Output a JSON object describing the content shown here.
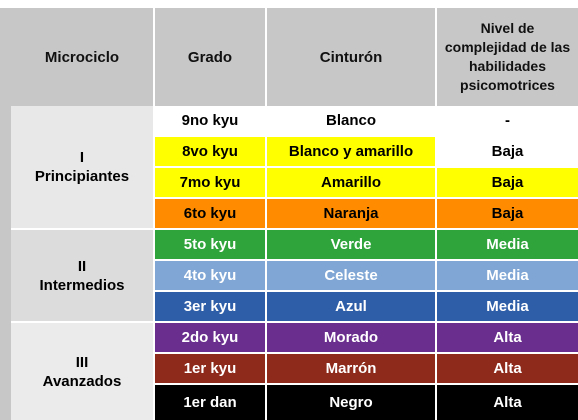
{
  "header": {
    "microciclo": "Microciclo",
    "grado": "Grado",
    "cinturon": "Cinturón",
    "nivel": "Nivel de complejidad de las habilidades psicomotrices"
  },
  "microciclos": [
    {
      "numeral": "I",
      "name": "Principiantes",
      "bg": "#e8e8e8"
    },
    {
      "numeral": "II",
      "name": "Intermedios",
      "bg": "#dcdcdc"
    },
    {
      "numeral": "III",
      "name": "Avanzados",
      "bg": "#ebebeb"
    }
  ],
  "rows": [
    {
      "grado": "9no kyu",
      "cinturon": "Blanco",
      "nivel": "-",
      "bg": "#ffffff",
      "fg": "#000000"
    },
    {
      "grado": "8vo kyu",
      "cinturon": "Blanco y amarillo",
      "nivel": "Baja",
      "bg": "#ffff00",
      "fg": "#000000",
      "nivel_bg": "#ffffff"
    },
    {
      "grado": "7mo kyu",
      "cinturon": "Amarillo",
      "nivel": "Baja",
      "bg": "#ffff00",
      "fg": "#000000"
    },
    {
      "grado": "6to kyu",
      "cinturon": "Naranja",
      "nivel": "Baja",
      "bg": "#ff8c00",
      "fg": "#000000"
    },
    {
      "grado": "5to kyu",
      "cinturon": "Verde",
      "nivel": "Media",
      "bg": "#2ea43a",
      "fg": "#ffffff"
    },
    {
      "grado": "4to kyu",
      "cinturon": "Celeste",
      "nivel": "Media",
      "bg": "#7fa6d4",
      "fg": "#ffffff"
    },
    {
      "grado": "3er kyu",
      "cinturon": "Azul",
      "nivel": "Media",
      "bg": "#2f5ea8",
      "fg": "#ffffff"
    },
    {
      "grado": "2do kyu",
      "cinturon": "Morado",
      "nivel": "Alta",
      "bg": "#6a2e8e",
      "fg": "#ffffff"
    },
    {
      "grado": "1er kyu",
      "cinturon": "Marrón",
      "nivel": "Alta",
      "bg": "#8e2a1c",
      "fg": "#ffffff"
    },
    {
      "grado": "1er dan",
      "cinturon": "Negro",
      "nivel": "Alta",
      "bg": "#000000",
      "fg": "#ffffff"
    }
  ]
}
